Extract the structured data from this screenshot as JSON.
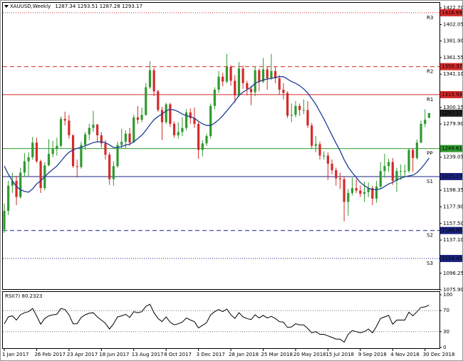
{
  "chart_data": {
    "type": "candlestick",
    "symbol": "XAUUSD,Weekly",
    "categories": [
      "1 Jan 2017",
      null,
      null,
      null,
      null,
      null,
      null,
      null,
      "26 Feb 2017",
      null,
      null,
      null,
      null,
      null,
      null,
      null,
      "23 Apr 2017",
      null,
      null,
      null,
      null,
      null,
      null,
      null,
      "18 Jun 2017",
      null,
      null,
      null,
      null,
      null,
      null,
      null,
      "13 Aug 2017",
      null,
      null,
      null,
      null,
      null,
      null,
      null,
      "8 Oct 2017",
      null,
      null,
      null,
      null,
      null,
      null,
      null,
      "3 Dec 2017",
      null,
      null,
      null,
      null,
      null,
      null,
      null,
      "28 Jan 2018",
      null,
      null,
      null,
      null,
      null,
      null,
      null,
      "25 Mar 2018",
      null,
      null,
      null,
      null,
      null,
      null,
      null,
      "20 May 2018",
      null,
      null,
      null,
      null,
      null,
      null,
      null,
      "15 Jul 2018",
      null,
      null,
      null,
      null,
      null,
      null,
      null,
      "9 Sep 2018",
      null,
      null,
      null,
      null,
      null,
      null,
      null,
      "4 Nov 2018",
      null,
      null,
      null,
      null,
      null,
      null,
      null,
      "30 Dec 2018",
      null
    ],
    "open": [
      1150,
      1173,
      1204,
      1210,
      1190,
      1220,
      1234,
      1239,
      1257,
      1234,
      1201,
      1229,
      1243,
      1249,
      1253,
      1286,
      1284,
      1266,
      1228,
      1227,
      1254,
      1267,
      1275,
      1279,
      1266,
      1256,
      1242,
      1212,
      1228,
      1254,
      1258,
      1268,
      1257,
      1288,
      1285,
      1291,
      1325,
      1346,
      1320,
      1297,
      1282,
      1304,
      1280,
      1266,
      1270,
      1275,
      1294,
      1287,
      1280,
      1248,
      1256,
      1265,
      1302,
      1322,
      1338,
      1332,
      1350,
      1333,
      1315,
      1348,
      1330,
      1323,
      1319,
      1346,
      1332,
      1347,
      1336,
      1345,
      1336,
      1322,
      1318,
      1290,
      1291,
      1302,
      1297,
      1297,
      1278,
      1253,
      1255,
      1241,
      1241,
      1231,
      1223,
      1213,
      1212,
      1184,
      1195,
      1201,
      1198,
      1194,
      1196,
      1201,
      1188,
      1203,
      1222,
      1228,
      1233,
      1210,
      1222,
      1222,
      1222,
      1248,
      1238,
      1257,
      1280,
      1287.34
    ],
    "high": [
      1182,
      1210,
      1220,
      1216,
      1226,
      1244,
      1245,
      1264,
      1263,
      1236,
      1233,
      1261,
      1259,
      1263,
      1289,
      1295,
      1291,
      1267,
      1236,
      1258,
      1270,
      1280,
      1296,
      1280,
      1270,
      1260,
      1245,
      1234,
      1258,
      1274,
      1272,
      1275,
      1291,
      1302,
      1300,
      1330,
      1357,
      1349,
      1322,
      1301,
      1306,
      1306,
      1283,
      1282,
      1288,
      1298,
      1299,
      1300,
      1282,
      1260,
      1268,
      1305,
      1325,
      1345,
      1343,
      1366,
      1352,
      1340,
      1356,
      1352,
      1333,
      1327,
      1350,
      1348,
      1361,
      1350,
      1366,
      1350,
      1340,
      1330,
      1320,
      1305,
      1308,
      1305,
      1310,
      1308,
      1281,
      1265,
      1258,
      1246,
      1245,
      1236,
      1226,
      1220,
      1215,
      1200,
      1214,
      1212,
      1204,
      1209,
      1208,
      1204,
      1210,
      1233,
      1243,
      1237,
      1238,
      1226,
      1230,
      1230,
      1250,
      1250,
      1261,
      1284,
      1298,
      1293.51
    ],
    "low": [
      1146,
      1168,
      1195,
      1180,
      1188,
      1215,
      1216,
      1236,
      1232,
      1195,
      1198,
      1228,
      1239,
      1241,
      1251,
      1278,
      1262,
      1226,
      1214,
      1225,
      1248,
      1260,
      1270,
      1257,
      1251,
      1236,
      1205,
      1204,
      1226,
      1250,
      1250,
      1253,
      1257,
      1280,
      1282,
      1290,
      1323,
      1314,
      1295,
      1260,
      1280,
      1276,
      1263,
      1262,
      1265,
      1272,
      1280,
      1275,
      1237,
      1240,
      1253,
      1262,
      1298,
      1318,
      1326,
      1330,
      1327,
      1306,
      1313,
      1323,
      1315,
      1303,
      1314,
      1320,
      1330,
      1322,
      1334,
      1330,
      1316,
      1310,
      1287,
      1282,
      1288,
      1290,
      1292,
      1275,
      1250,
      1245,
      1236,
      1236,
      1211,
      1218,
      1204,
      1200,
      1160,
      1167,
      1192,
      1195,
      1190,
      1184,
      1190,
      1180,
      1183,
      1200,
      1214,
      1221,
      1205,
      1196,
      1211,
      1214,
      1220,
      1221,
      1236,
      1256,
      1276,
      1287.28
    ],
    "close": [
      1173,
      1204,
      1210,
      1190,
      1220,
      1234,
      1239,
      1257,
      1234,
      1201,
      1229,
      1243,
      1249,
      1253,
      1286,
      1284,
      1266,
      1228,
      1227,
      1254,
      1267,
      1275,
      1279,
      1266,
      1256,
      1242,
      1212,
      1228,
      1254,
      1258,
      1268,
      1257,
      1288,
      1285,
      1291,
      1325,
      1346,
      1320,
      1297,
      1282,
      1304,
      1280,
      1266,
      1270,
      1275,
      1294,
      1287,
      1280,
      1248,
      1256,
      1265,
      1302,
      1322,
      1338,
      1332,
      1350,
      1333,
      1315,
      1348,
      1330,
      1323,
      1319,
      1346,
      1332,
      1347,
      1336,
      1345,
      1336,
      1322,
      1318,
      1290,
      1291,
      1302,
      1297,
      1297,
      1278,
      1253,
      1255,
      1241,
      1241,
      1231,
      1223,
      1213,
      1212,
      1184,
      1195,
      1201,
      1198,
      1194,
      1196,
      1201,
      1188,
      1203,
      1222,
      1228,
      1233,
      1210,
      1222,
      1222,
      1222,
      1248,
      1238,
      1257,
      1280,
      1285,
      1293.17
    ],
    "up_color": "#2f9a2f",
    "down_color": "#d42a2a",
    "ylim": [
      1075.9,
      1422.7
    ],
    "yticks": [
      {
        "value": 1422.7,
        "label": "1422.70"
      },
      1402.05,
      {
        "value": 1381.9,
        "label": "1381.90"
      },
      1361.55,
      {
        "value": 1341.1,
        "label": "1341.10"
      },
      1300.15,
      {
        "value": 1279.9,
        "label": "1279.90"
      },
      1239.05,
      1198.35,
      {
        "value": 1177.9,
        "label": "1177.90"
      },
      {
        "value": 1157.5,
        "label": "1157.50"
      },
      {
        "value": 1137.1,
        "label": "1137.10"
      },
      1096.25,
      {
        "value": 1075.9,
        "label": "1075.90"
      }
    ],
    "ma": {
      "color": "#1c3f94",
      "values": [
        1228,
        1218,
        1210,
        1203,
        1199,
        1197,
        1196,
        1200,
        1206,
        1210,
        1215,
        1220,
        1224,
        1228,
        1234,
        1240,
        1245,
        1248,
        1250,
        1251,
        1253,
        1255,
        1257,
        1258,
        1258,
        1257,
        1254,
        1251,
        1251,
        1252,
        1254,
        1255,
        1258,
        1262,
        1266,
        1272,
        1279,
        1285,
        1289,
        1292,
        1296,
        1298,
        1297,
        1295,
        1292,
        1290,
        1289,
        1287,
        1283,
        1280,
        1278,
        1278,
        1281,
        1285,
        1290,
        1296,
        1302,
        1308,
        1315,
        1319,
        1322,
        1325,
        1330,
        1332,
        1334,
        1335,
        1336,
        1337,
        1338,
        1338,
        1335,
        1332,
        1330,
        1327,
        1323,
        1318,
        1311,
        1304,
        1295,
        1286,
        1276,
        1266,
        1256,
        1247,
        1236,
        1227,
        1220,
        1214,
        1208,
        1204,
        1201,
        1199,
        1199,
        1200,
        1203,
        1206,
        1208,
        1211,
        1213,
        1215,
        1216,
        1217,
        1220,
        1225,
        1231,
        1238
      ]
    },
    "levels": [
      {
        "name": "R3",
        "value": 1416.69,
        "color": "#d42a2a",
        "style": "dotted"
      },
      {
        "name": "R2",
        "value": 1350.37,
        "color": "#d42a2a",
        "style": "dashed"
      },
      {
        "name": "R1",
        "value": 1315.93,
        "color": "#d42a2a",
        "style": "solid"
      },
      {
        "name": "PP",
        "value": 1249.61,
        "color": "#2f9a2f",
        "style": "solid"
      },
      {
        "name": "S1",
        "value": 1215.17,
        "color": "#1a237e",
        "style": "solid"
      },
      {
        "name": "S2",
        "value": 1148.85,
        "color": "#1a237e",
        "style": "dashed"
      },
      {
        "name": "S3",
        "value": 1114.41,
        "color": "#1a237e",
        "style": "dotted"
      }
    ],
    "rsi": {
      "label": "RSI(7)",
      "color": "#000000",
      "ylim": [
        0,
        100
      ],
      "yticks": [
        100,
        70,
        30,
        0
      ],
      "values": [
        45,
        58,
        60,
        52,
        62,
        66,
        68,
        74,
        60,
        44,
        55,
        60,
        62,
        63,
        74,
        72,
        62,
        45,
        45,
        57,
        62,
        65,
        66,
        58,
        52,
        46,
        35,
        45,
        58,
        60,
        63,
        57,
        68,
        66,
        68,
        78,
        82,
        66,
        55,
        49,
        58,
        48,
        43,
        45,
        48,
        56,
        52,
        49,
        37,
        42,
        47,
        62,
        68,
        72,
        68,
        73,
        62,
        55,
        66,
        58,
        55,
        53,
        62,
        56,
        61,
        56,
        59,
        55,
        49,
        48,
        38,
        39,
        45,
        43,
        43,
        36,
        28,
        30,
        25,
        25,
        22,
        19,
        16,
        16,
        10,
        25,
        32,
        30,
        28,
        30,
        35,
        28,
        40,
        55,
        58,
        61,
        44,
        52,
        52,
        52,
        67,
        60,
        68,
        76,
        77,
        80.2323
      ]
    }
  }
}
